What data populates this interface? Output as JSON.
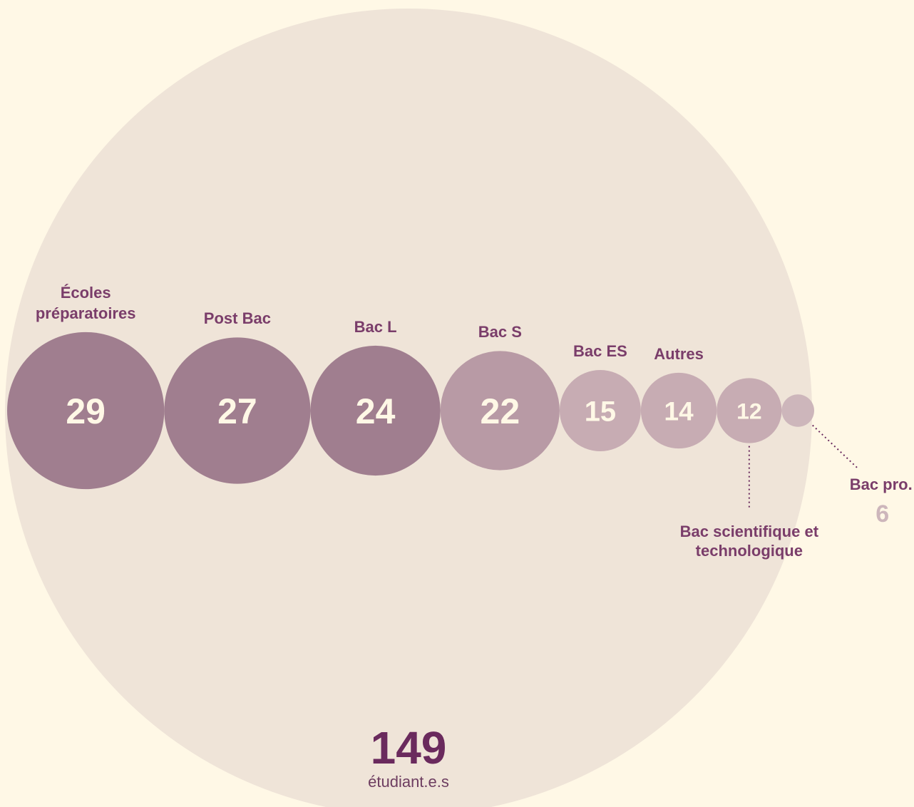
{
  "chart_data": {
    "type": "bubble",
    "total": 149,
    "total_label": "étudiant.e.s",
    "total_color": "#efe4d8",
    "categories": [
      "Écoles préparatoires",
      "Post Bac",
      "Bac L",
      "Bac S",
      "Bac ES",
      "Autres",
      "Bac scientifique et technologique",
      "Bac pro."
    ],
    "values": [
      29,
      27,
      24,
      22,
      15,
      14,
      12,
      6
    ],
    "colors": [
      "#a07e8f",
      "#a07e8f",
      "#a07e8f",
      "#b89aa5",
      "#c7acb3",
      "#c7acb3",
      "#c7acb3",
      "#cdb6bb"
    ]
  }
}
